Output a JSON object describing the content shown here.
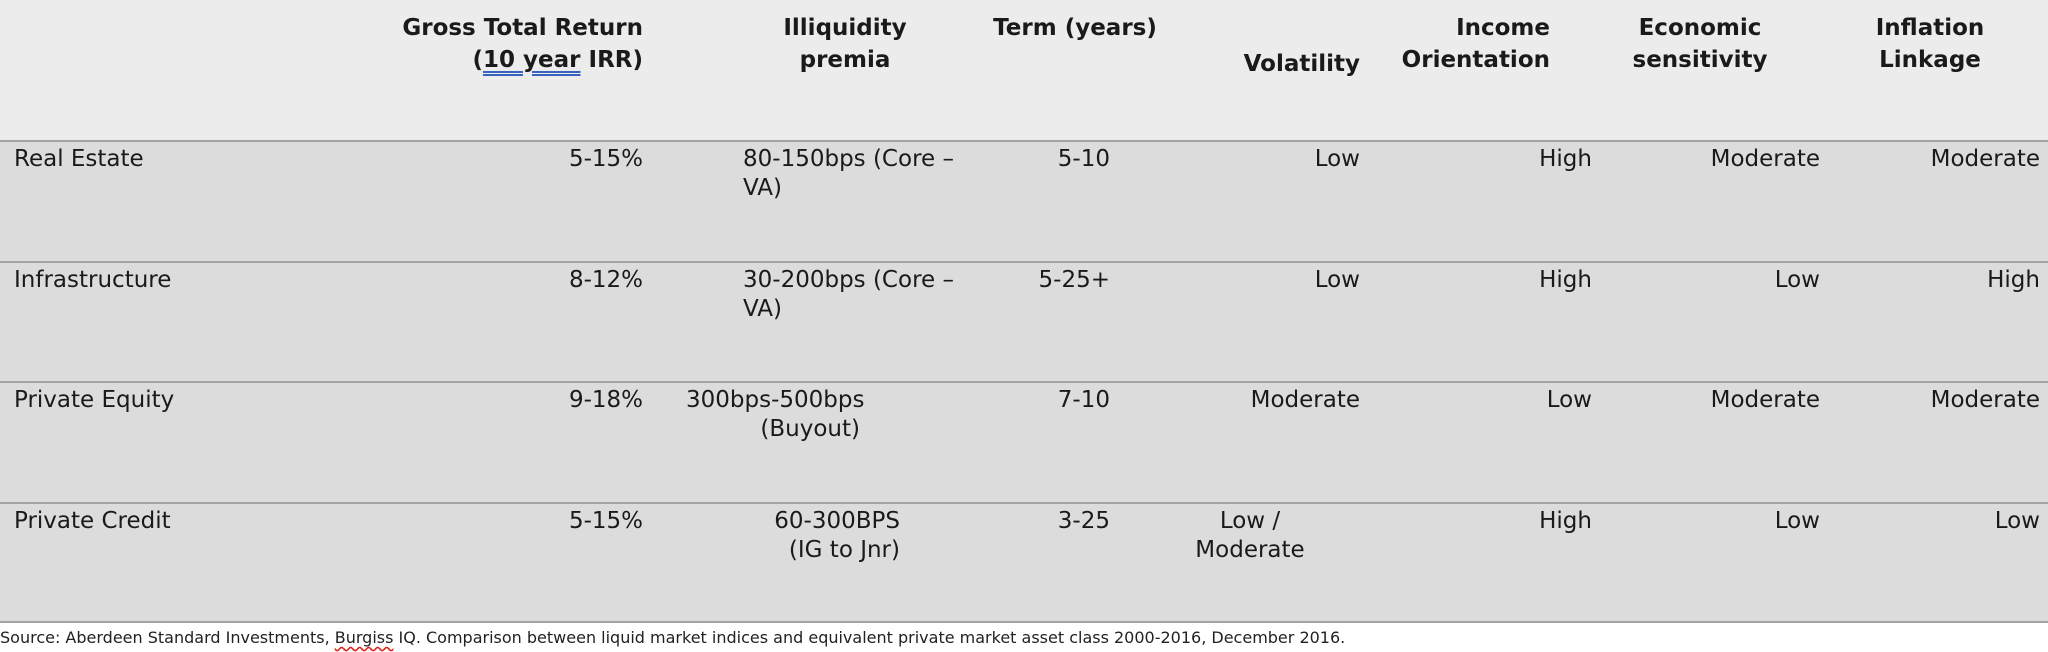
{
  "table": {
    "headers": {
      "gross_total_return_line1": "Gross Total Return",
      "gross_total_return_paren_open": "(",
      "gross_total_return_link": "10 year",
      "gross_total_return_rest": " IRR)",
      "illiquidity_line1": "Illiquidity",
      "illiquidity_line2": "premia",
      "term": "Term (years)",
      "volatility": "Volatility",
      "income_line1": "Income",
      "income_line2": "Orientation",
      "economic_line1": "Economic",
      "economic_line2": "sensitivity",
      "inflation_line1": "Inflation",
      "inflation_line2": "Linkage"
    },
    "rows": [
      {
        "asset": "Real Estate",
        "return": "5-15%",
        "premia_line1": "80-150bps (Core –",
        "premia_line2": "VA)",
        "term": "5-10",
        "volatility_line1": "Low",
        "volatility_line2": "",
        "income": "High",
        "economic": "Moderate",
        "inflation": "Moderate"
      },
      {
        "asset": "Infrastructure",
        "return": "8-12%",
        "premia_line1": "30-200bps (Core –",
        "premia_line2": "VA)",
        "term": "5-25+",
        "volatility_line1": "Low",
        "volatility_line2": "",
        "income": "High",
        "economic": "Low",
        "inflation": "High"
      },
      {
        "asset": "Private Equity",
        "return": "9-18%",
        "premia_line1": "300bps-500bps",
        "premia_line2": "(Buyout)",
        "term": "7-10",
        "volatility_line1": "Moderate",
        "volatility_line2": "",
        "income": "Low",
        "economic": "Moderate",
        "inflation": "Moderate"
      },
      {
        "asset": "Private Credit",
        "return": "5-15%",
        "premia_line1": "60-300BPS",
        "premia_line2": "(IG to Jnr)",
        "term": "3-25",
        "volatility_line1": "Low /",
        "volatility_line2": "Moderate",
        "income": "High",
        "economic": "Low",
        "inflation": "Low"
      }
    ]
  },
  "source": {
    "prefix": "Source: Aberdeen Standard Investments, ",
    "burgiss": "Burgiss",
    "suffix": " IQ. Comparison between liquid market indices and equivalent private market asset class 2000-2016, December 2016."
  }
}
